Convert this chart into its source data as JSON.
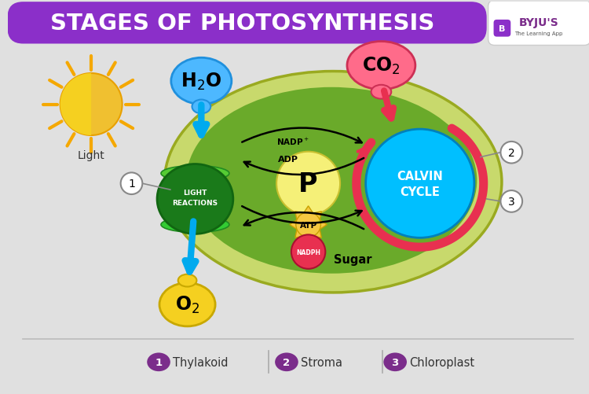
{
  "title": "STAGES OF PHOTOSYNTHESIS",
  "title_bg": "#8B2FC9",
  "bg_color": "#e0e0e0",
  "footer_color": "#7B2D8B",
  "chloroplast_outer_color": "#c8d96c",
  "chloroplast_inner_color": "#6aaa2a",
  "h2o_color": "#4db8ff",
  "co2_color": "#ff6b8a",
  "o2_color": "#f5d020",
  "p_color": "#f5f078",
  "atp_color": "#f5c842",
  "nadph_color": "#e83050",
  "calvin_color": "#00bfff",
  "arrow_blue_color": "#00aaee",
  "arrow_red_color": "#e83050",
  "sun_color": "#f5c842",
  "sun_ray_color": "#f5a800",
  "footer_texts": [
    "Thylakoid",
    "Stroma",
    "Chloroplast"
  ]
}
